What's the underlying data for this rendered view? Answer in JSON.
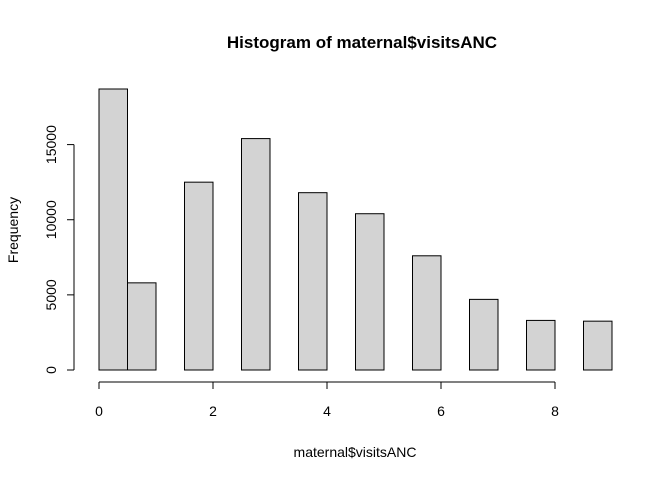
{
  "chart_data": {
    "type": "bar",
    "title": "Histogram of maternal$visitsANC",
    "xlabel": "maternal$visitsANC",
    "ylabel": "Frequency",
    "bins": [
      {
        "from": 0.0,
        "to": 0.5,
        "value": 18700
      },
      {
        "from": 0.5,
        "to": 1.0,
        "value": 5800
      },
      {
        "from": 1.5,
        "to": 2.0,
        "value": 12500
      },
      {
        "from": 2.5,
        "to": 3.0,
        "value": 15400
      },
      {
        "from": 3.5,
        "to": 4.0,
        "value": 11800
      },
      {
        "from": 4.5,
        "to": 5.0,
        "value": 10400
      },
      {
        "from": 5.5,
        "to": 6.0,
        "value": 7600
      },
      {
        "from": 6.5,
        "to": 7.0,
        "value": 4700
      },
      {
        "from": 7.5,
        "to": 8.0,
        "value": 3300
      },
      {
        "from": 8.5,
        "to": 9.0,
        "value": 3250
      }
    ],
    "xlim": [
      0,
      9
    ],
    "ylim": [
      0,
      18700
    ],
    "x_ticks": [
      "0",
      "2",
      "4",
      "6",
      "8"
    ],
    "y_ticks": [
      "0",
      "5000",
      "10000",
      "15000"
    ],
    "bar_color": "#d3d3d3",
    "grid": false
  }
}
